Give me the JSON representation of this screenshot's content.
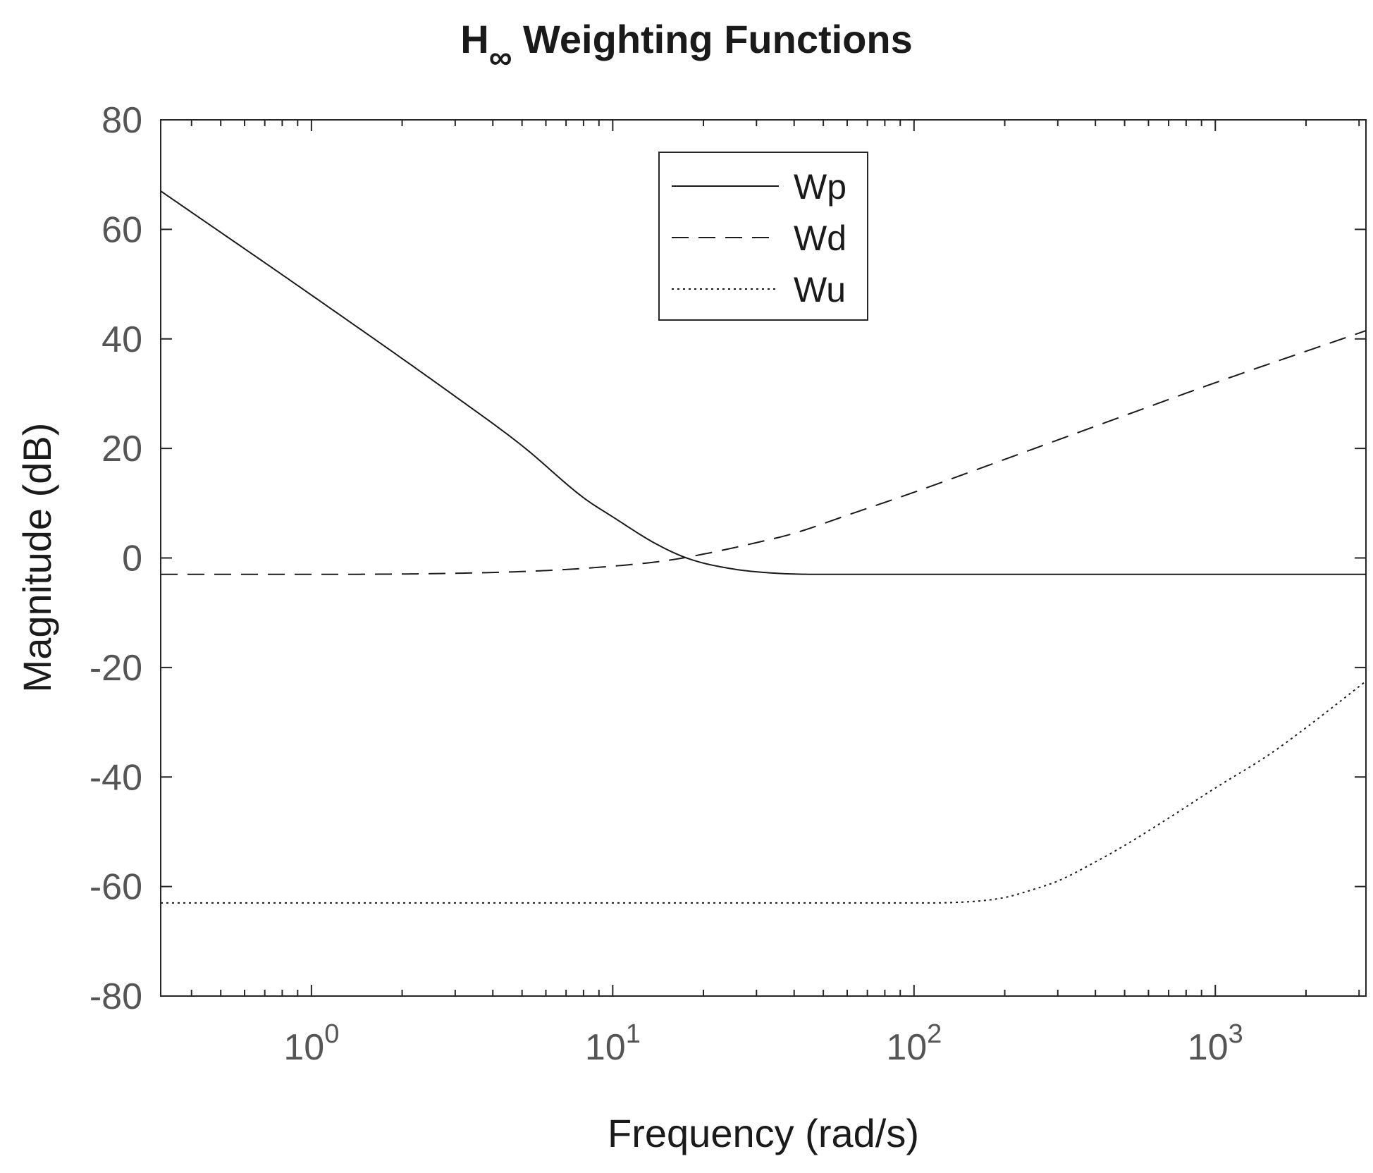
{
  "chart_data": {
    "type": "line",
    "title": {
      "main": "H",
      "subscript": "∞",
      "rest": " Weighting Functions"
    },
    "xlabel": "Frequency (rad/s)",
    "ylabel": "Magnitude (dB)",
    "xscale": "log",
    "xlim": [
      0.316,
      3162
    ],
    "ylim": [
      -80,
      80
    ],
    "yticks": [
      80,
      60,
      40,
      20,
      0,
      -20,
      -40,
      -60,
      -80
    ],
    "ytick_labels": [
      "80",
      "60",
      "40",
      "20",
      "0",
      "-20",
      "-40",
      "-60",
      "-80"
    ],
    "xticks": [
      {
        "value": 1,
        "base": "10",
        "exp": "0"
      },
      {
        "value": 10,
        "base": "10",
        "exp": "1"
      },
      {
        "value": 100,
        "base": "10",
        "exp": "2"
      },
      {
        "value": 1000,
        "base": "10",
        "exp": "3"
      }
    ],
    "legend_position": "top-center",
    "series": [
      {
        "name": "Wp",
        "style": "solid",
        "points": [
          [
            0.316,
            67
          ],
          [
            1,
            48
          ],
          [
            3,
            29.5
          ],
          [
            5,
            20.5
          ],
          [
            8,
            11
          ],
          [
            10,
            7.5
          ],
          [
            14,
            2.5
          ],
          [
            18,
            -0.2
          ],
          [
            25,
            -2.0
          ],
          [
            35,
            -2.8
          ],
          [
            50,
            -3.0
          ],
          [
            100,
            -3.0
          ],
          [
            1000,
            -3.0
          ],
          [
            3162,
            -3.0
          ]
        ]
      },
      {
        "name": "Wd",
        "style": "dashed",
        "points": [
          [
            0.316,
            -3.0
          ],
          [
            1,
            -3.0
          ],
          [
            3,
            -2.8
          ],
          [
            6,
            -2.3
          ],
          [
            10,
            -1.5
          ],
          [
            15,
            -0.5
          ],
          [
            20,
            0.7
          ],
          [
            30,
            2.8
          ],
          [
            40,
            4.5
          ],
          [
            60,
            7.8
          ],
          [
            100,
            12
          ],
          [
            200,
            18
          ],
          [
            500,
            26
          ],
          [
            1000,
            32
          ],
          [
            3162,
            41.5
          ]
        ]
      },
      {
        "name": "Wu",
        "style": "dotted",
        "points": [
          [
            0.316,
            -63
          ],
          [
            10,
            -63
          ],
          [
            100,
            -63
          ],
          [
            150,
            -62.8
          ],
          [
            200,
            -62
          ],
          [
            250,
            -60.5
          ],
          [
            300,
            -59
          ],
          [
            400,
            -55.5
          ],
          [
            500,
            -52.5
          ],
          [
            700,
            -47.5
          ],
          [
            1000,
            -42
          ],
          [
            1500,
            -36
          ],
          [
            2000,
            -31
          ],
          [
            3162,
            -22.5
          ]
        ]
      }
    ],
    "grid": false
  }
}
